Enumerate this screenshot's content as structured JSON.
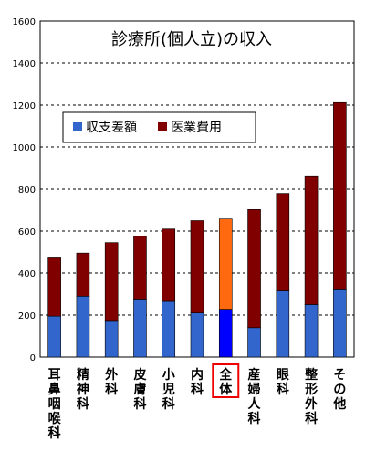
{
  "chart_data": {
    "type": "bar",
    "stacked": true,
    "title": "診療所(個人立)の収入",
    "categories": [
      "耳鼻咽喉科",
      "精神科",
      "外科",
      "皮膚科",
      "小児科",
      "内科",
      "全体",
      "産婦人科",
      "眼科",
      "整形外科",
      "その他"
    ],
    "series": [
      {
        "name": "収支差額",
        "color": "#3366cc",
        "values": [
          195,
          290,
          170,
          272,
          265,
          210,
          228,
          140,
          315,
          250,
          320
        ]
      },
      {
        "name": "医業費用",
        "color": "#800000",
        "values": [
          277,
          205,
          375,
          303,
          345,
          440,
          430,
          563,
          465,
          610,
          892
        ]
      }
    ],
    "highlight": {
      "category": "全体",
      "colors": [
        "#0000ff",
        "#ff6a10"
      ],
      "box_color": "#ee0000"
    },
    "ylim": [
      0,
      1600
    ],
    "yticks": [
      0,
      200,
      400,
      600,
      800,
      1000,
      1200,
      1400,
      1600
    ],
    "xlabel": "",
    "ylabel": "",
    "grid": true,
    "legend_position": "top-left"
  }
}
